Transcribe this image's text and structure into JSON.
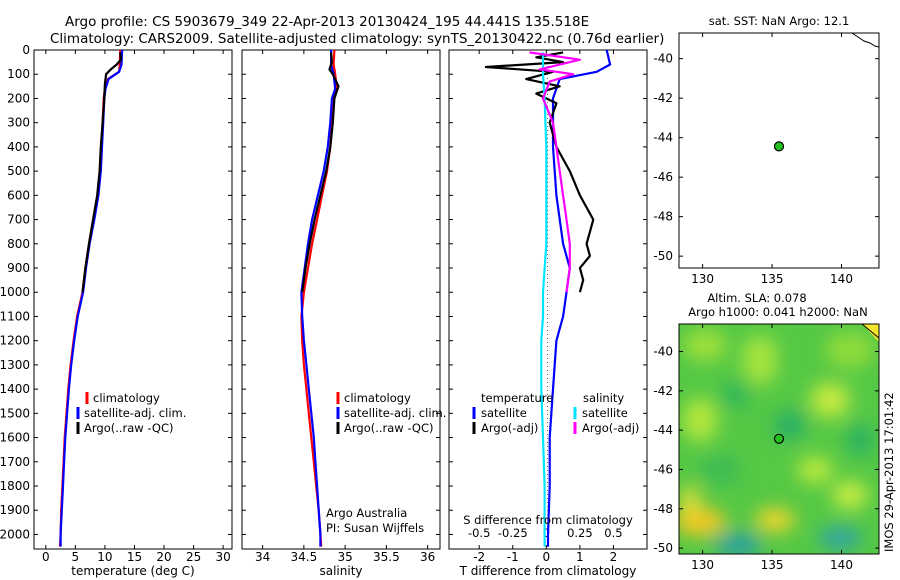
{
  "title": {
    "line1": "Argo profile: CS 5903679_349 22-Apr-2013 20130424_195 44.441S 135.518E",
    "line2": "Climatology: CARS2009. Satellite-adjusted climatology: synTS_20130422.nc (0.76d earlier)"
  },
  "side_label": "IMOS 29-Apr-2013 17:01:42",
  "chart_data": [
    {
      "type": "line",
      "name": "temperature",
      "xlabel": "temperature (deg C)",
      "xlim": [
        -2,
        31.5
      ],
      "ylim": [
        2060,
        0
      ],
      "xticks": [
        0,
        5,
        10,
        15,
        20,
        25,
        30
      ],
      "yticks": [
        0,
        100,
        200,
        300,
        400,
        500,
        600,
        700,
        800,
        900,
        1000,
        1100,
        1200,
        1300,
        1400,
        1500,
        1600,
        1700,
        1800,
        1900,
        2000
      ],
      "legend": [
        "climatology",
        "satellite-adj. clim.",
        "Argo(..raw -QC)"
      ],
      "series": [
        {
          "name": "climatology",
          "color": "#ff0000",
          "points": [
            [
              12.6,
              0
            ],
            [
              12.5,
              60
            ],
            [
              12.4,
              90
            ],
            [
              10.5,
              120
            ],
            [
              10.0,
              160
            ],
            [
              9.8,
              200
            ],
            [
              9.6,
              300
            ],
            [
              9.4,
              400
            ],
            [
              9.2,
              500
            ],
            [
              8.8,
              600
            ],
            [
              8.0,
              700
            ],
            [
              7.3,
              800
            ],
            [
              6.7,
              900
            ],
            [
              6.2,
              1000
            ],
            [
              5.3,
              1100
            ],
            [
              4.7,
              1200
            ],
            [
              4.2,
              1300
            ],
            [
              3.8,
              1400
            ],
            [
              3.5,
              1500
            ],
            [
              3.2,
              1600
            ],
            [
              3.0,
              1700
            ],
            [
              2.8,
              1800
            ],
            [
              2.6,
              1900
            ],
            [
              2.5,
              2000
            ],
            [
              2.4,
              2050
            ]
          ]
        },
        {
          "name": "satellite-adj. clim.",
          "color": "#0000ff",
          "points": [
            [
              12.9,
              0
            ],
            [
              12.8,
              60
            ],
            [
              12.4,
              90
            ],
            [
              10.6,
              120
            ],
            [
              10.1,
              160
            ],
            [
              9.9,
              200
            ],
            [
              9.7,
              300
            ],
            [
              9.5,
              400
            ],
            [
              9.3,
              500
            ],
            [
              8.9,
              600
            ],
            [
              8.2,
              700
            ],
            [
              7.4,
              800
            ],
            [
              6.8,
              900
            ],
            [
              6.3,
              1000
            ],
            [
              5.4,
              1100
            ],
            [
              4.8,
              1200
            ],
            [
              4.3,
              1300
            ],
            [
              3.9,
              1400
            ],
            [
              3.6,
              1500
            ],
            [
              3.3,
              1600
            ],
            [
              3.1,
              1700
            ],
            [
              2.9,
              1800
            ],
            [
              2.7,
              1900
            ],
            [
              2.5,
              2000
            ],
            [
              2.5,
              2050
            ]
          ]
        },
        {
          "name": "Argo(..raw -QC)",
          "color": "#000000",
          "points": [
            [
              12.6,
              10
            ],
            [
              12.7,
              40
            ],
            [
              12.0,
              60
            ],
            [
              11.0,
              80
            ],
            [
              10.2,
              100
            ],
            [
              10.0,
              140
            ],
            [
              9.9,
              200
            ],
            [
              9.6,
              300
            ],
            [
              9.3,
              400
            ],
            [
              9.1,
              500
            ],
            [
              8.7,
              600
            ],
            [
              8.0,
              700
            ],
            [
              7.3,
              800
            ],
            [
              6.7,
              900
            ],
            [
              6.2,
              1000
            ]
          ]
        }
      ]
    },
    {
      "type": "line",
      "name": "salinity",
      "xlabel": "salinity",
      "xlim": [
        33.75,
        36.15
      ],
      "ylim": [
        2060,
        0
      ],
      "xticks": [
        34,
        34.5,
        35,
        35.5,
        36
      ],
      "legend": [
        "climatology",
        "satellite-adj. clim.",
        "Argo(..raw -QC)"
      ],
      "notes": [
        "Argo Australia",
        "PI: Susan Wijffels"
      ],
      "series": [
        {
          "name": "climatology",
          "color": "#ff0000",
          "points": [
            [
              34.87,
              0
            ],
            [
              34.86,
              60
            ],
            [
              34.88,
              100
            ],
            [
              34.9,
              160
            ],
            [
              34.86,
              200
            ],
            [
              34.84,
              300
            ],
            [
              34.82,
              400
            ],
            [
              34.78,
              500
            ],
            [
              34.72,
              600
            ],
            [
              34.66,
              700
            ],
            [
              34.6,
              800
            ],
            [
              34.55,
              900
            ],
            [
              34.5,
              1000
            ],
            [
              34.47,
              1100
            ],
            [
              34.48,
              1200
            ],
            [
              34.5,
              1300
            ],
            [
              34.53,
              1400
            ],
            [
              34.56,
              1500
            ],
            [
              34.59,
              1600
            ],
            [
              34.62,
              1700
            ],
            [
              34.65,
              1800
            ],
            [
              34.68,
              1900
            ],
            [
              34.7,
              2000
            ],
            [
              34.71,
              2050
            ]
          ]
        },
        {
          "name": "satellite-adj. clim.",
          "color": "#0000ff",
          "points": [
            [
              34.83,
              0
            ],
            [
              34.83,
              60
            ],
            [
              34.86,
              100
            ],
            [
              34.88,
              160
            ],
            [
              34.84,
              200
            ],
            [
              34.82,
              300
            ],
            [
              34.79,
              400
            ],
            [
              34.74,
              500
            ],
            [
              34.67,
              600
            ],
            [
              34.6,
              700
            ],
            [
              34.55,
              800
            ],
            [
              34.51,
              900
            ],
            [
              34.47,
              1000
            ],
            [
              34.48,
              1100
            ],
            [
              34.5,
              1200
            ],
            [
              34.53,
              1300
            ],
            [
              34.56,
              1400
            ],
            [
              34.59,
              1500
            ],
            [
              34.62,
              1600
            ],
            [
              34.64,
              1700
            ],
            [
              34.66,
              1800
            ],
            [
              34.68,
              1900
            ],
            [
              34.7,
              2000
            ],
            [
              34.7,
              2050
            ]
          ]
        },
        {
          "name": "Argo(..raw -QC)",
          "color": "#000000",
          "points": [
            [
              34.83,
              10
            ],
            [
              34.84,
              50
            ],
            [
              34.81,
              80
            ],
            [
              34.85,
              100
            ],
            [
              34.92,
              150
            ],
            [
              34.87,
              200
            ],
            [
              34.85,
              300
            ],
            [
              34.82,
              400
            ],
            [
              34.77,
              500
            ],
            [
              34.7,
              600
            ],
            [
              34.63,
              700
            ],
            [
              34.57,
              800
            ],
            [
              34.52,
              900
            ],
            [
              34.48,
              1000
            ]
          ]
        }
      ]
    },
    {
      "type": "line",
      "name": "difference",
      "xlabel": "T difference from climatology",
      "xlabel_top": "S difference from climatology",
      "xlim": [
        -2.9,
        3.0
      ],
      "ylim": [
        2060,
        0
      ],
      "xticks": [
        -2,
        -1,
        0,
        1,
        2
      ],
      "xticks_top": [
        [
          "-0.5",
          -2
        ],
        [
          "-0.25",
          -1
        ],
        [
          "0",
          0
        ],
        [
          "0.25",
          1
        ],
        [
          "0.5",
          2
        ]
      ],
      "legend_headers": [
        "temperature",
        "salinity"
      ],
      "legend": [
        "satellite",
        "Argo(-adj)",
        "satellite",
        "Argo(-adj)"
      ],
      "series": [
        {
          "name": "T satellite",
          "color": "#0000ff",
          "points": [
            [
              1.8,
              0
            ],
            [
              1.9,
              60
            ],
            [
              1.5,
              90
            ],
            [
              0.4,
              120
            ],
            [
              0.2,
              200
            ],
            [
              0.2,
              400
            ],
            [
              0.3,
              600
            ],
            [
              0.5,
              800
            ],
            [
              0.7,
              900
            ],
            [
              0.6,
              1000
            ],
            [
              0.5,
              1100
            ],
            [
              0.3,
              1200
            ],
            [
              0.2,
              1400
            ],
            [
              0.1,
              1600
            ],
            [
              0.1,
              1800
            ],
            [
              0.05,
              2000
            ],
            [
              0.05,
              2050
            ]
          ]
        },
        {
          "name": "T Argo(-adj)",
          "color": "#000000",
          "points": [
            [
              0.5,
              10
            ],
            [
              -0.3,
              30
            ],
            [
              0.5,
              50
            ],
            [
              -1.8,
              70
            ],
            [
              0.2,
              90
            ],
            [
              -0.6,
              120
            ],
            [
              0.4,
              150
            ],
            [
              -0.3,
              180
            ],
            [
              0.3,
              220
            ],
            [
              0.1,
              300
            ],
            [
              0.3,
              400
            ],
            [
              0.7,
              500
            ],
            [
              1.0,
              600
            ],
            [
              1.4,
              700
            ],
            [
              1.2,
              800
            ],
            [
              1.3,
              850
            ],
            [
              1.0,
              900
            ],
            [
              1.1,
              950
            ],
            [
              1.0,
              1000
            ]
          ]
        },
        {
          "name": "S satellite",
          "color": "#00e5ff",
          "points": [
            [
              -0.1,
              10
            ],
            [
              -0.1,
              100
            ],
            [
              -0.05,
              200
            ],
            [
              0.0,
              400
            ],
            [
              0.0,
              600
            ],
            [
              0.0,
              800
            ],
            [
              -0.1,
              1000
            ],
            [
              -0.1,
              1100
            ],
            [
              -0.15,
              1200
            ],
            [
              -0.15,
              1400
            ],
            [
              -0.1,
              1600
            ],
            [
              -0.05,
              1800
            ],
            [
              -0.05,
              2000
            ],
            [
              -0.05,
              2050
            ]
          ]
        },
        {
          "name": "S Argo(-adj)",
          "color": "#ff00ff",
          "points": [
            [
              -0.5,
              10
            ],
            [
              1.0,
              40
            ],
            [
              -0.2,
              80
            ],
            [
              0.8,
              100
            ],
            [
              0.1,
              130
            ],
            [
              -0.1,
              200
            ],
            [
              0.2,
              300
            ],
            [
              0.3,
              400
            ],
            [
              0.4,
              500
            ],
            [
              0.5,
              600
            ],
            [
              0.6,
              700
            ],
            [
              0.7,
              800
            ],
            [
              0.7,
              900
            ],
            [
              0.6,
              1000
            ]
          ]
        }
      ]
    },
    {
      "type": "scatter",
      "name": "sst_map",
      "title": "sat. SST: NaN Argo: 12.1",
      "xlim": [
        128.3,
        142.7
      ],
      "ylim": [
        -50.6,
        -38.7
      ],
      "xticks": [
        130,
        135,
        140
      ],
      "yticks": [
        -40,
        -42,
        -44,
        -46,
        -48,
        -50
      ],
      "points": [
        [
          135.5,
          -44.44
        ]
      ]
    },
    {
      "type": "heatmap",
      "name": "sla_map",
      "title": "Altim. SLA: 0.078",
      "subtitle": "Argo h1000: 0.041 h2000: NaN",
      "xlim": [
        128.3,
        142.7
      ],
      "ylim": [
        -50.3,
        -38.6
      ],
      "xticks": [
        130,
        135,
        140
      ],
      "yticks": [
        -40,
        -42,
        -44,
        -46,
        -48,
        -50
      ],
      "points": [
        [
          135.5,
          -44.44
        ]
      ]
    }
  ]
}
